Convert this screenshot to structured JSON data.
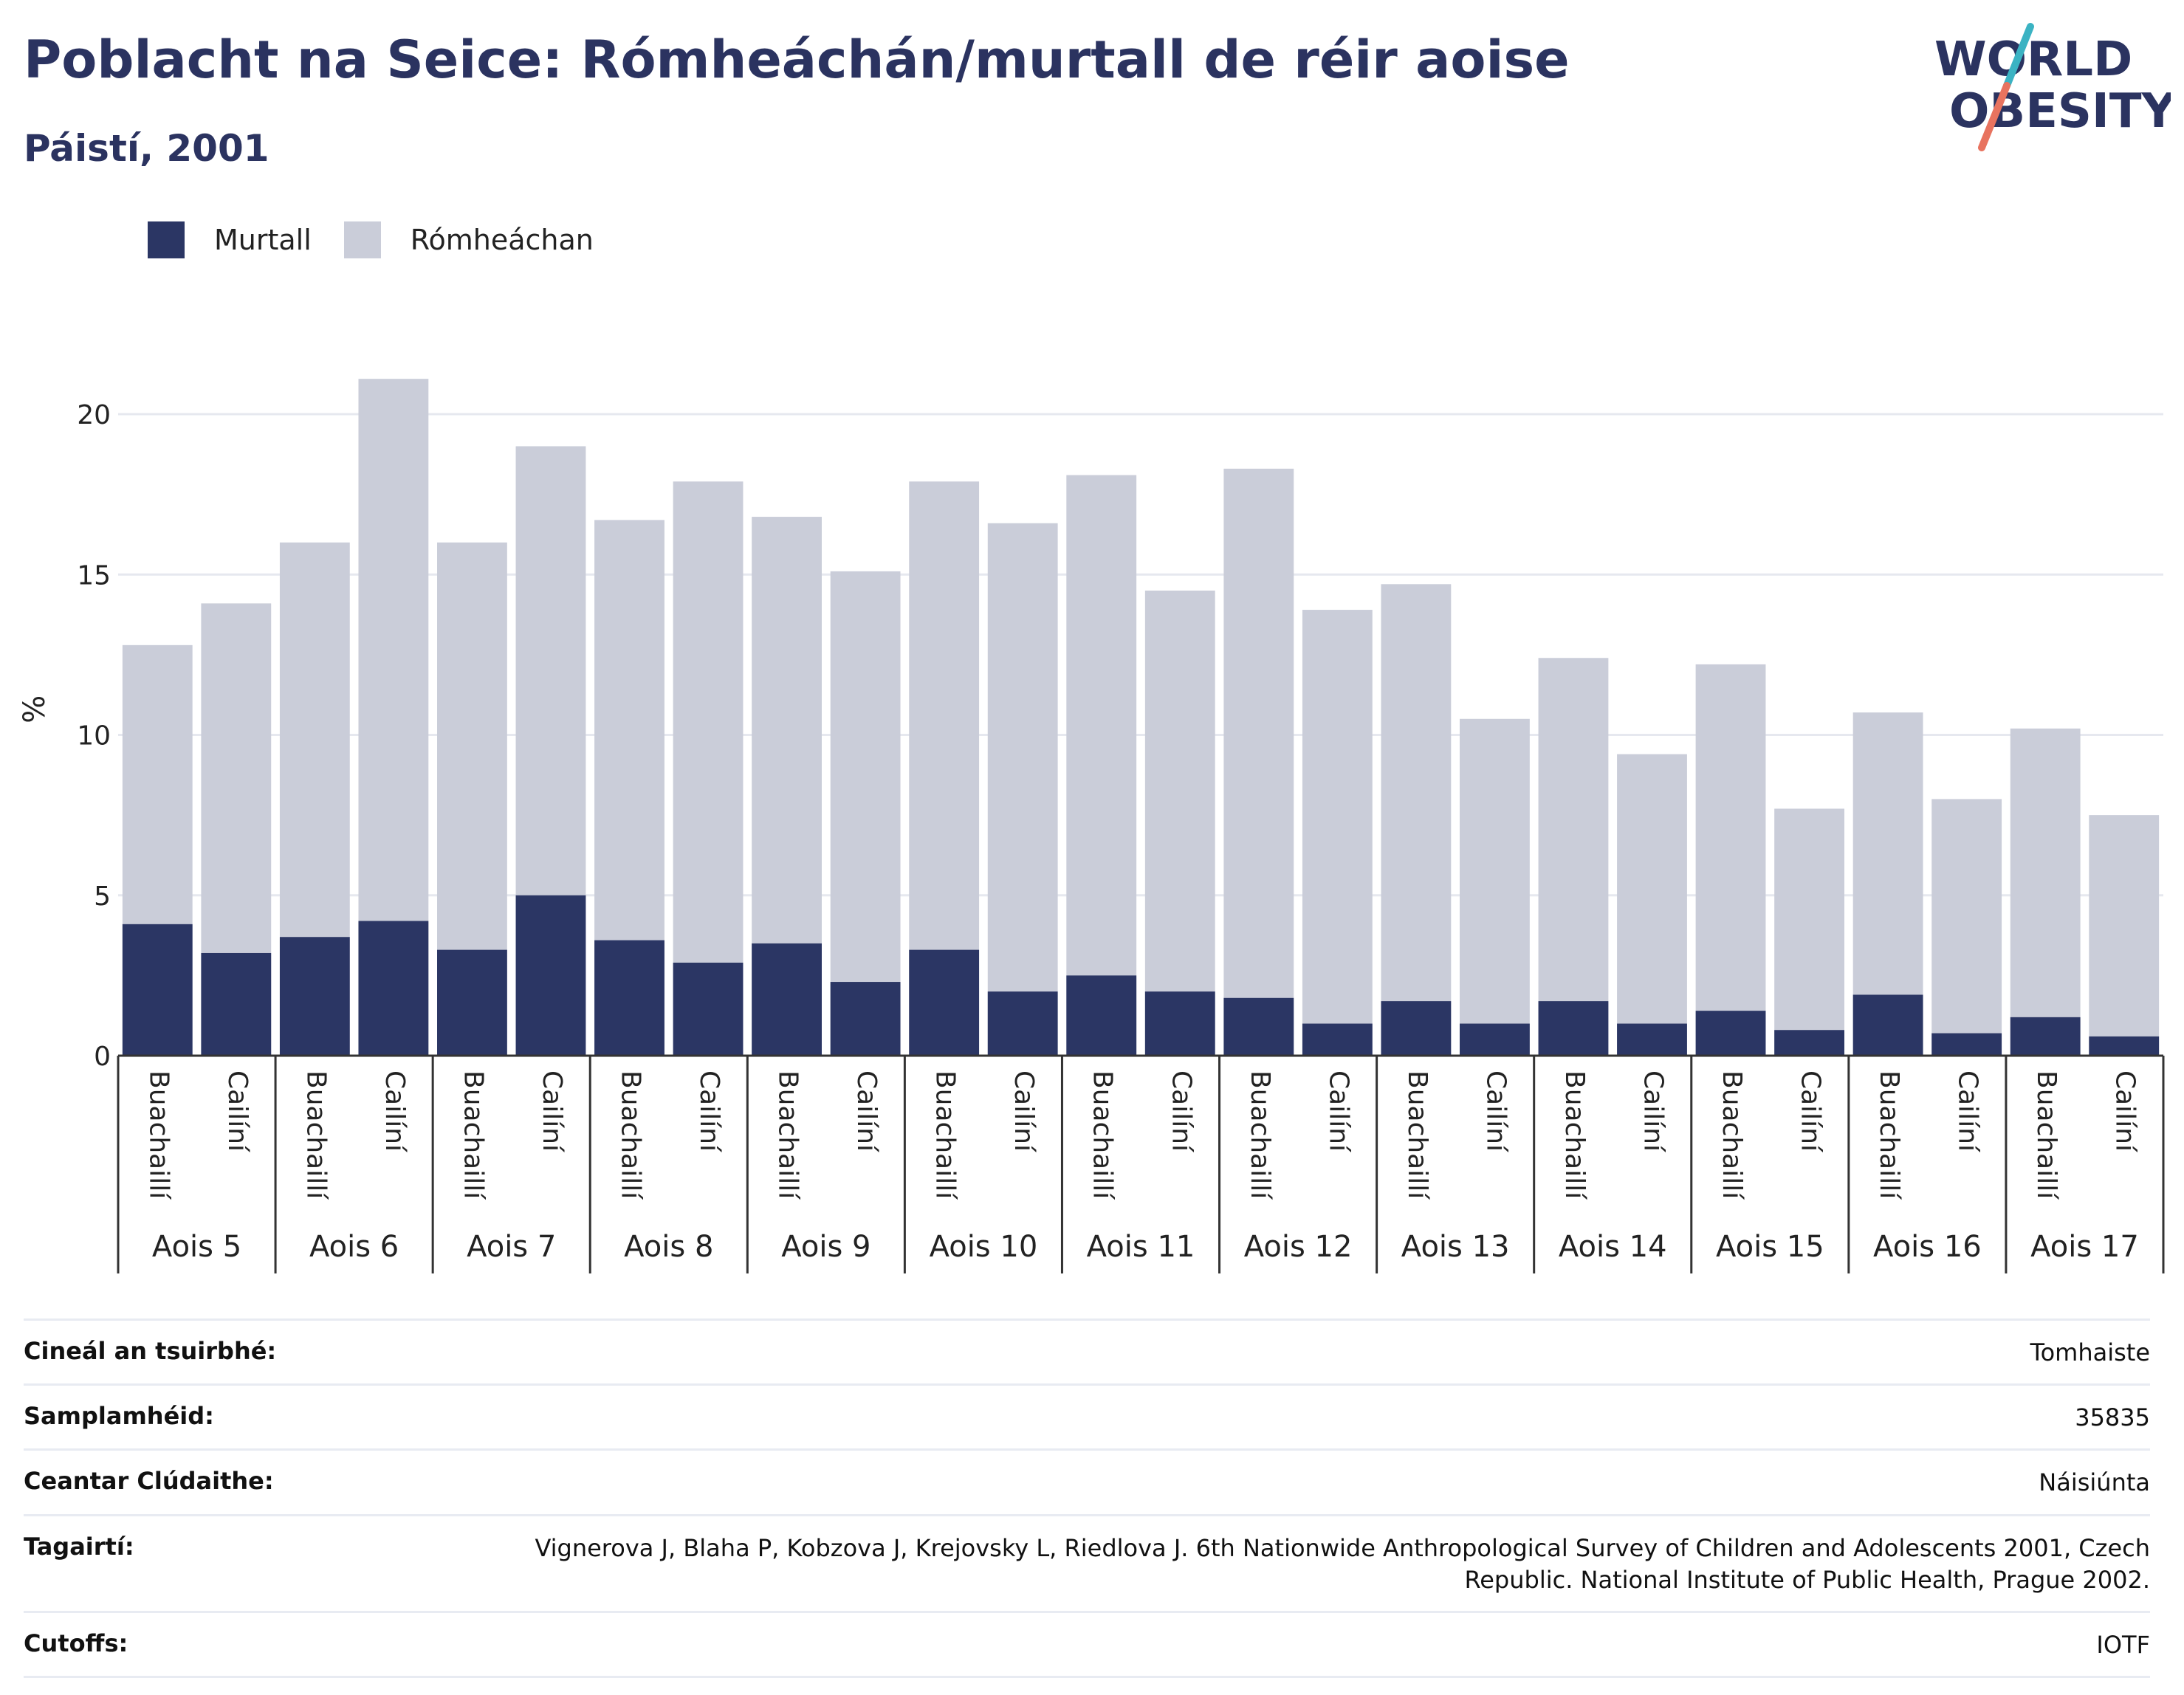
{
  "title": "Poblacht na Seice: Rómheáchán/murtall de réir aoise",
  "subtitle": "Páistí, 2001",
  "logo": {
    "line1": "WORLD",
    "line2": "OBESITY"
  },
  "colors": {
    "obese": "#2b3664",
    "overweight": "#cacdd9",
    "title": "#2b3360",
    "logo_teal": "#3bb3c3",
    "logo_coral": "#e8735f"
  },
  "legend": [
    {
      "key": "obese",
      "label": "Murtall"
    },
    {
      "key": "overweight",
      "label": "Rómheáchan"
    }
  ],
  "chart_data": {
    "type": "bar",
    "stacked": true,
    "ylabel": "%",
    "ylim": [
      0,
      22
    ],
    "yticks": [
      0,
      5,
      10,
      15,
      20
    ],
    "grid": true,
    "legend_position": "top-left",
    "groups": [
      "Aois 5",
      "Aois 6",
      "Aois 7",
      "Aois 8",
      "Aois 9",
      "Aois 10",
      "Aois 11",
      "Aois 12",
      "Aois 13",
      "Aois 14",
      "Aois 15",
      "Aois 16",
      "Aois 17"
    ],
    "subcategories": [
      "Buachaillí",
      "Cailíní"
    ],
    "series": [
      {
        "name": "Murtall",
        "key": "obese",
        "values": [
          [
            4.1,
            3.2
          ],
          [
            3.7,
            4.2
          ],
          [
            3.3,
            5.0
          ],
          [
            3.6,
            2.9
          ],
          [
            3.5,
            2.3
          ],
          [
            3.3,
            2.0
          ],
          [
            2.5,
            2.0
          ],
          [
            1.8,
            1.0
          ],
          [
            1.7,
            1.0
          ],
          [
            1.7,
            1.0
          ],
          [
            1.4,
            0.8
          ],
          [
            1.9,
            0.7
          ],
          [
            1.2,
            0.6
          ]
        ]
      },
      {
        "name": "Rómheáchan",
        "key": "overweight",
        "values": [
          [
            12.8,
            14.1
          ],
          [
            16.0,
            21.1
          ],
          [
            16.0,
            19.0
          ],
          [
            16.7,
            17.9
          ],
          [
            16.8,
            15.1
          ],
          [
            17.9,
            16.6
          ],
          [
            18.1,
            14.5
          ],
          [
            18.3,
            13.9
          ],
          [
            14.7,
            10.5
          ],
          [
            12.4,
            9.4
          ],
          [
            12.2,
            7.7
          ],
          [
            10.7,
            8.0
          ],
          [
            10.2,
            7.5
          ]
        ]
      }
    ]
  },
  "meta": [
    {
      "label": "Cineál an tsuirbhé:",
      "value": "Tomhaiste"
    },
    {
      "label": "Samplamhéid:",
      "value": "35835"
    },
    {
      "label": "Ceantar Clúdaithe:",
      "value": "Náisiúnta"
    },
    {
      "label": "Tagairtí:",
      "value": "Vignerova J, Blaha P, Kobzova J, Krejovsky L, Riedlova J. 6th Nationwide Anthropological Survey of Children and Adolescents 2001, Czech Republic. National Institute of Public Health, Prague 2002."
    },
    {
      "label": "Cutoffs:",
      "value": "IOTF"
    }
  ]
}
